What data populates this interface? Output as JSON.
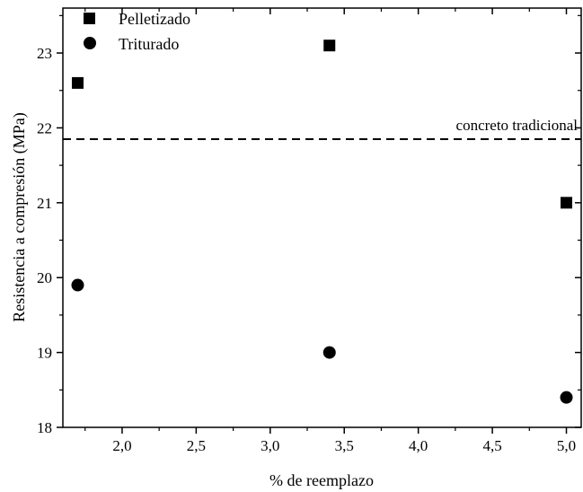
{
  "chart_data": {
    "type": "scatter",
    "xlabel": "% de reemplazo",
    "ylabel": "Resistencia a compresión (MPa)",
    "xlim": [
      1.6,
      5.1
    ],
    "ylim": [
      18.0,
      23.6
    ],
    "x_ticks": [
      2.0,
      2.5,
      3.0,
      3.5,
      4.0,
      4.5,
      5.0
    ],
    "x_tick_labels": [
      "2,0",
      "2,5",
      "3,0",
      "3,5",
      "4,0",
      "4,5",
      "5,0"
    ],
    "y_ticks": [
      18,
      19,
      20,
      21,
      22,
      23
    ],
    "y_tick_labels": [
      "18",
      "19",
      "20",
      "21",
      "22",
      "23"
    ],
    "grid": false,
    "legend_position": "top-left",
    "series": [
      {
        "name": "Pelletizado",
        "marker": "square",
        "color": "#000000",
        "x": [
          1.7,
          3.4,
          5.0
        ],
        "y": [
          22.6,
          23.1,
          21.0
        ]
      },
      {
        "name": "Triturado",
        "marker": "circle",
        "color": "#000000",
        "x": [
          1.7,
          3.4,
          5.0
        ],
        "y": [
          19.9,
          19.0,
          18.4
        ]
      }
    ],
    "reference_line": {
      "label": "concreto tradicional",
      "y": 21.85,
      "style": "dashed",
      "color": "#000000"
    }
  }
}
